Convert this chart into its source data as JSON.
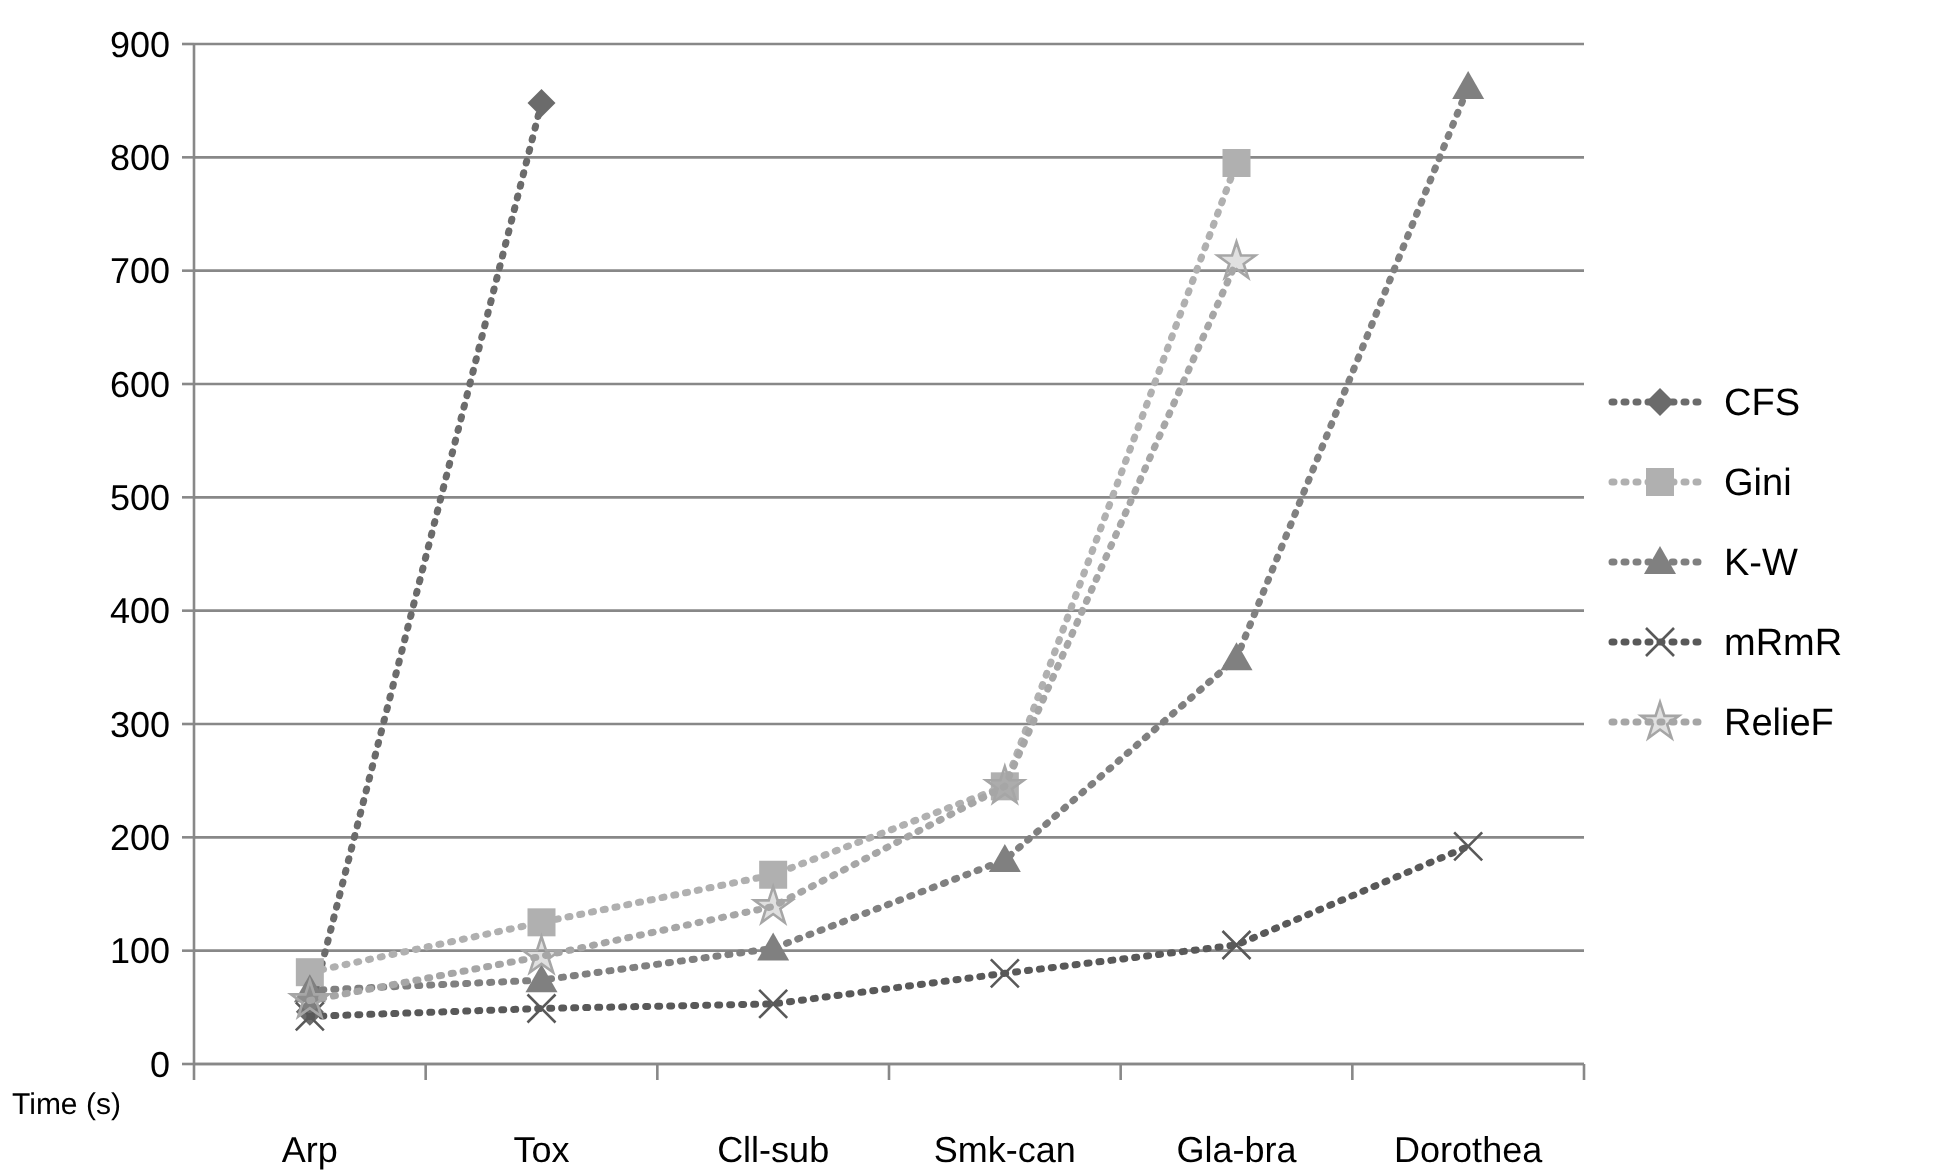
{
  "chart_data": {
    "type": "line",
    "ylabel": "Time (s)",
    "categories": [
      "Arp",
      "Tox",
      "Cll-sub",
      "Smk-can",
      "Gla-bra",
      "Dorothea"
    ],
    "ylim": [
      0,
      900
    ],
    "yticks": [
      0,
      100,
      200,
      300,
      400,
      500,
      600,
      700,
      800,
      900
    ],
    "grid": "y",
    "legend": "right",
    "line_style": "dotted",
    "series": [
      {
        "name": "CFS",
        "color": "#6b6b6b",
        "marker": "diamond",
        "values": [
          46,
          848,
          null,
          null,
          null,
          null
        ]
      },
      {
        "name": "Gini",
        "color": "#b0b0b0",
        "marker": "square",
        "values": [
          81,
          125,
          167,
          245,
          795,
          null
        ]
      },
      {
        "name": "K-W",
        "color": "#808080",
        "marker": "triangle",
        "values": [
          65,
          74,
          102,
          180,
          358,
          862
        ]
      },
      {
        "name": "mRmR",
        "color": "#595959",
        "marker": "cross",
        "values": [
          42,
          49,
          53,
          80,
          105,
          192
        ]
      },
      {
        "name": "RelieF",
        "color": "#a6a6a6",
        "marker": "star",
        "values": [
          56,
          95,
          139,
          245,
          708,
          null
        ]
      }
    ]
  }
}
